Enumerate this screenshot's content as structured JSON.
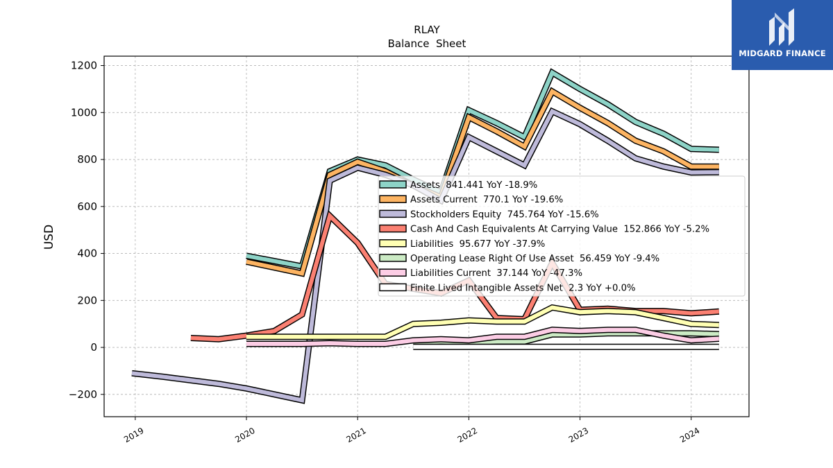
{
  "chart_data": {
    "type": "line",
    "title": "RLAY",
    "subtitle": "Balance  Sheet",
    "ylabel": "USD",
    "xlabel": "",
    "xlim": [
      2018.72,
      2024.52
    ],
    "ylim": [
      -295,
      1240
    ],
    "yticks": [
      -200,
      0,
      200,
      400,
      600,
      800,
      1000,
      1200
    ],
    "yticklabels": [
      "−200",
      "0",
      "200",
      "400",
      "600",
      "800",
      "1000",
      "1200"
    ],
    "xticks": [
      2019,
      2020,
      2021,
      2022,
      2023,
      2024
    ],
    "xticklabels": [
      "2019",
      "2020",
      "2021",
      "2022",
      "2023",
      "2024"
    ],
    "grid": true,
    "legend_position": "center-right",
    "series": [
      {
        "name": "Assets",
        "legend": "Assets  841.441 YoY -18.9%",
        "color": "#8dd3c7",
        "points": [
          [
            2020.0,
            390
          ],
          [
            2020.5,
            345
          ],
          [
            2020.75,
            750
          ],
          [
            2021.0,
            800
          ],
          [
            2021.25,
            775
          ],
          [
            2021.5,
            715
          ],
          [
            2021.75,
            660
          ],
          [
            2022.0,
            1010
          ],
          [
            2022.25,
            955
          ],
          [
            2022.5,
            895
          ],
          [
            2022.75,
            1170
          ],
          [
            2023.0,
            1100
          ],
          [
            2023.25,
            1035
          ],
          [
            2023.5,
            960
          ],
          [
            2023.75,
            910
          ],
          [
            2024.0,
            845
          ],
          [
            2024.25,
            841.441
          ]
        ]
      },
      {
        "name": "Assets Current",
        "legend": "Assets Current  770.1 YoY -19.6%",
        "color": "#fdb462",
        "points": [
          [
            2020.0,
            365
          ],
          [
            2020.5,
            315
          ],
          [
            2020.75,
            735
          ],
          [
            2021.0,
            790
          ],
          [
            2021.25,
            750
          ],
          [
            2021.5,
            690
          ],
          [
            2021.75,
            640
          ],
          [
            2022.0,
            980
          ],
          [
            2022.25,
            920
          ],
          [
            2022.5,
            855
          ],
          [
            2022.75,
            1090
          ],
          [
            2023.0,
            1020
          ],
          [
            2023.25,
            955
          ],
          [
            2023.5,
            880
          ],
          [
            2023.75,
            835
          ],
          [
            2024.0,
            770
          ],
          [
            2024.25,
            770.1
          ]
        ]
      },
      {
        "name": "Stockholders Equity",
        "legend": "Stockholders Equity  745.764 YoY -15.6%",
        "color": "#bebada",
        "points": [
          [
            2018.97,
            -110
          ],
          [
            2019.25,
            -125
          ],
          [
            2019.5,
            -140
          ],
          [
            2019.75,
            -155
          ],
          [
            2020.0,
            -175
          ],
          [
            2020.25,
            -200
          ],
          [
            2020.5,
            -225
          ],
          [
            2020.75,
            710
          ],
          [
            2021.0,
            765
          ],
          [
            2021.25,
            735
          ],
          [
            2021.5,
            690
          ],
          [
            2021.75,
            625
          ],
          [
            2022.0,
            895
          ],
          [
            2022.25,
            835
          ],
          [
            2022.5,
            775
          ],
          [
            2022.75,
            1005
          ],
          [
            2023.0,
            950
          ],
          [
            2023.25,
            880
          ],
          [
            2023.5,
            805
          ],
          [
            2023.75,
            770
          ],
          [
            2024.0,
            745
          ],
          [
            2024.25,
            745.764
          ]
        ]
      },
      {
        "name": "Cash And Cash Equivalents At Carrying Value",
        "legend": "Cash And Cash Equivalents At Carrying Value  152.866 YoY -5.2%",
        "color": "#fb8072",
        "points": [
          [
            2019.5,
            40
          ],
          [
            2019.75,
            35
          ],
          [
            2020.0,
            50
          ],
          [
            2020.25,
            70
          ],
          [
            2020.5,
            140
          ],
          [
            2020.75,
            560
          ],
          [
            2021.0,
            445
          ],
          [
            2021.25,
            270
          ],
          [
            2021.5,
            250
          ],
          [
            2021.75,
            230
          ],
          [
            2022.0,
            285
          ],
          [
            2022.25,
            125
          ],
          [
            2022.5,
            120
          ],
          [
            2022.75,
            360
          ],
          [
            2023.0,
            160
          ],
          [
            2023.25,
            165
          ],
          [
            2023.5,
            155
          ],
          [
            2023.75,
            155
          ],
          [
            2024.0,
            145
          ],
          [
            2024.25,
            152.866
          ]
        ]
      },
      {
        "name": "Liabilities",
        "legend": "Liabilities  95.677 YoY -37.9%",
        "color": "#ffffb3",
        "points": [
          [
            2020.0,
            45
          ],
          [
            2020.5,
            45
          ],
          [
            2020.75,
            45
          ],
          [
            2021.0,
            45
          ],
          [
            2021.25,
            45
          ],
          [
            2021.5,
            100
          ],
          [
            2021.75,
            105
          ],
          [
            2022.0,
            115
          ],
          [
            2022.25,
            110
          ],
          [
            2022.5,
            110
          ],
          [
            2022.75,
            170
          ],
          [
            2023.0,
            150
          ],
          [
            2023.25,
            155
          ],
          [
            2023.5,
            150
          ],
          [
            2023.75,
            125
          ],
          [
            2024.0,
            100
          ],
          [
            2024.25,
            95.677
          ]
        ]
      },
      {
        "name": "Operating Lease Right Of Use Asset",
        "legend": "Operating Lease Right Of Use Asset  56.459 YoY -9.4%",
        "color": "#ccebc5",
        "points": [
          [
            2021.5,
            20
          ],
          [
            2021.75,
            25
          ],
          [
            2022.0,
            20
          ],
          [
            2022.25,
            25
          ],
          [
            2022.5,
            25
          ],
          [
            2022.75,
            55
          ],
          [
            2023.0,
            55
          ],
          [
            2023.25,
            60
          ],
          [
            2023.5,
            60
          ],
          [
            2023.75,
            60
          ],
          [
            2024.0,
            60
          ],
          [
            2024.25,
            56.459
          ]
        ]
      },
      {
        "name": "Liabilities Current",
        "legend": "Liabilities Current  37.144 YoY -47.3%",
        "color": "#fccde5",
        "points": [
          [
            2020.0,
            15
          ],
          [
            2020.5,
            15
          ],
          [
            2020.75,
            18
          ],
          [
            2021.0,
            15
          ],
          [
            2021.25,
            15
          ],
          [
            2021.5,
            30
          ],
          [
            2021.75,
            35
          ],
          [
            2022.0,
            30
          ],
          [
            2022.25,
            45
          ],
          [
            2022.5,
            45
          ],
          [
            2022.75,
            75
          ],
          [
            2023.0,
            70
          ],
          [
            2023.25,
            75
          ],
          [
            2023.5,
            75
          ],
          [
            2023.75,
            50
          ],
          [
            2024.0,
            30
          ],
          [
            2024.25,
            37.144
          ]
        ]
      },
      {
        "name": "Finite Lived Intangible Assets Net",
        "legend": "Finite Lived Intangible Assets Net  2.3 YoY +0.0%",
        "color": "#ffffff",
        "points": [
          [
            2021.5,
            2.3
          ],
          [
            2024.25,
            2.3
          ]
        ]
      }
    ]
  },
  "logo": {
    "text": "MIDGARD FINANCE",
    "bg_color": "#2a5cae"
  }
}
